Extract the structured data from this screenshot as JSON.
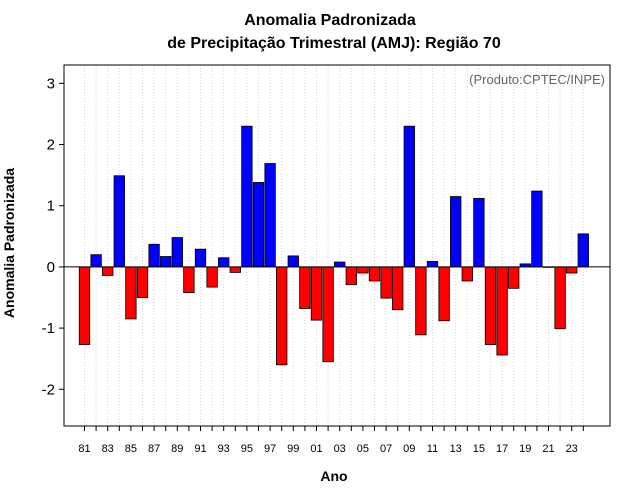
{
  "chart_data": {
    "type": "bar",
    "title": "Anomalia Padronizada",
    "subtitle": "de Precipitação Trimestral (AMJ): Região 70",
    "xlabel": "Ano",
    "ylabel": "Anomalia Padronizada",
    "annotation": "(Produto:CPTEC/INPE)",
    "ylim": [
      -2.6,
      3.3
    ],
    "yticks": [
      -2,
      -1,
      0,
      1,
      2,
      3
    ],
    "ytick_labels": [
      "-2",
      "-1",
      "0",
      "1",
      "2",
      "3"
    ],
    "grid": "vertical dotted",
    "positive_color": "#0000ff",
    "negative_color": "#ff0000",
    "categories": [
      "81",
      "82",
      "83",
      "84",
      "85",
      "86",
      "87",
      "88",
      "89",
      "90",
      "91",
      "92",
      "93",
      "94",
      "95",
      "96",
      "97",
      "98",
      "99",
      "00",
      "01",
      "02",
      "03",
      "04",
      "05",
      "06",
      "07",
      "08",
      "09",
      "10",
      "11",
      "12",
      "13",
      "14",
      "15",
      "16",
      "17",
      "18",
      "19",
      "20",
      "21",
      "22",
      "23",
      "24"
    ],
    "x_tick_labels_shown": [
      "81",
      "83",
      "85",
      "87",
      "89",
      "91",
      "93",
      "95",
      "97",
      "99",
      "01",
      "03",
      "05",
      "07",
      "09",
      "11",
      "13",
      "15",
      "17",
      "19",
      "21",
      "23"
    ],
    "values": [
      -1.27,
      0.2,
      -0.14,
      1.49,
      -0.85,
      -0.5,
      0.37,
      0.17,
      0.48,
      -0.42,
      0.29,
      -0.33,
      0.15,
      -0.09,
      2.3,
      1.38,
      1.69,
      -1.6,
      0.18,
      -0.68,
      -0.87,
      -1.55,
      0.08,
      -0.29,
      -0.1,
      -0.23,
      -0.51,
      -0.7,
      2.3,
      -1.11,
      0.09,
      -0.88,
      1.15,
      -0.23,
      1.12,
      -1.27,
      -1.44,
      -0.35,
      0.05,
      1.24,
      0.0,
      -1.01,
      -0.1,
      0.54
    ]
  }
}
